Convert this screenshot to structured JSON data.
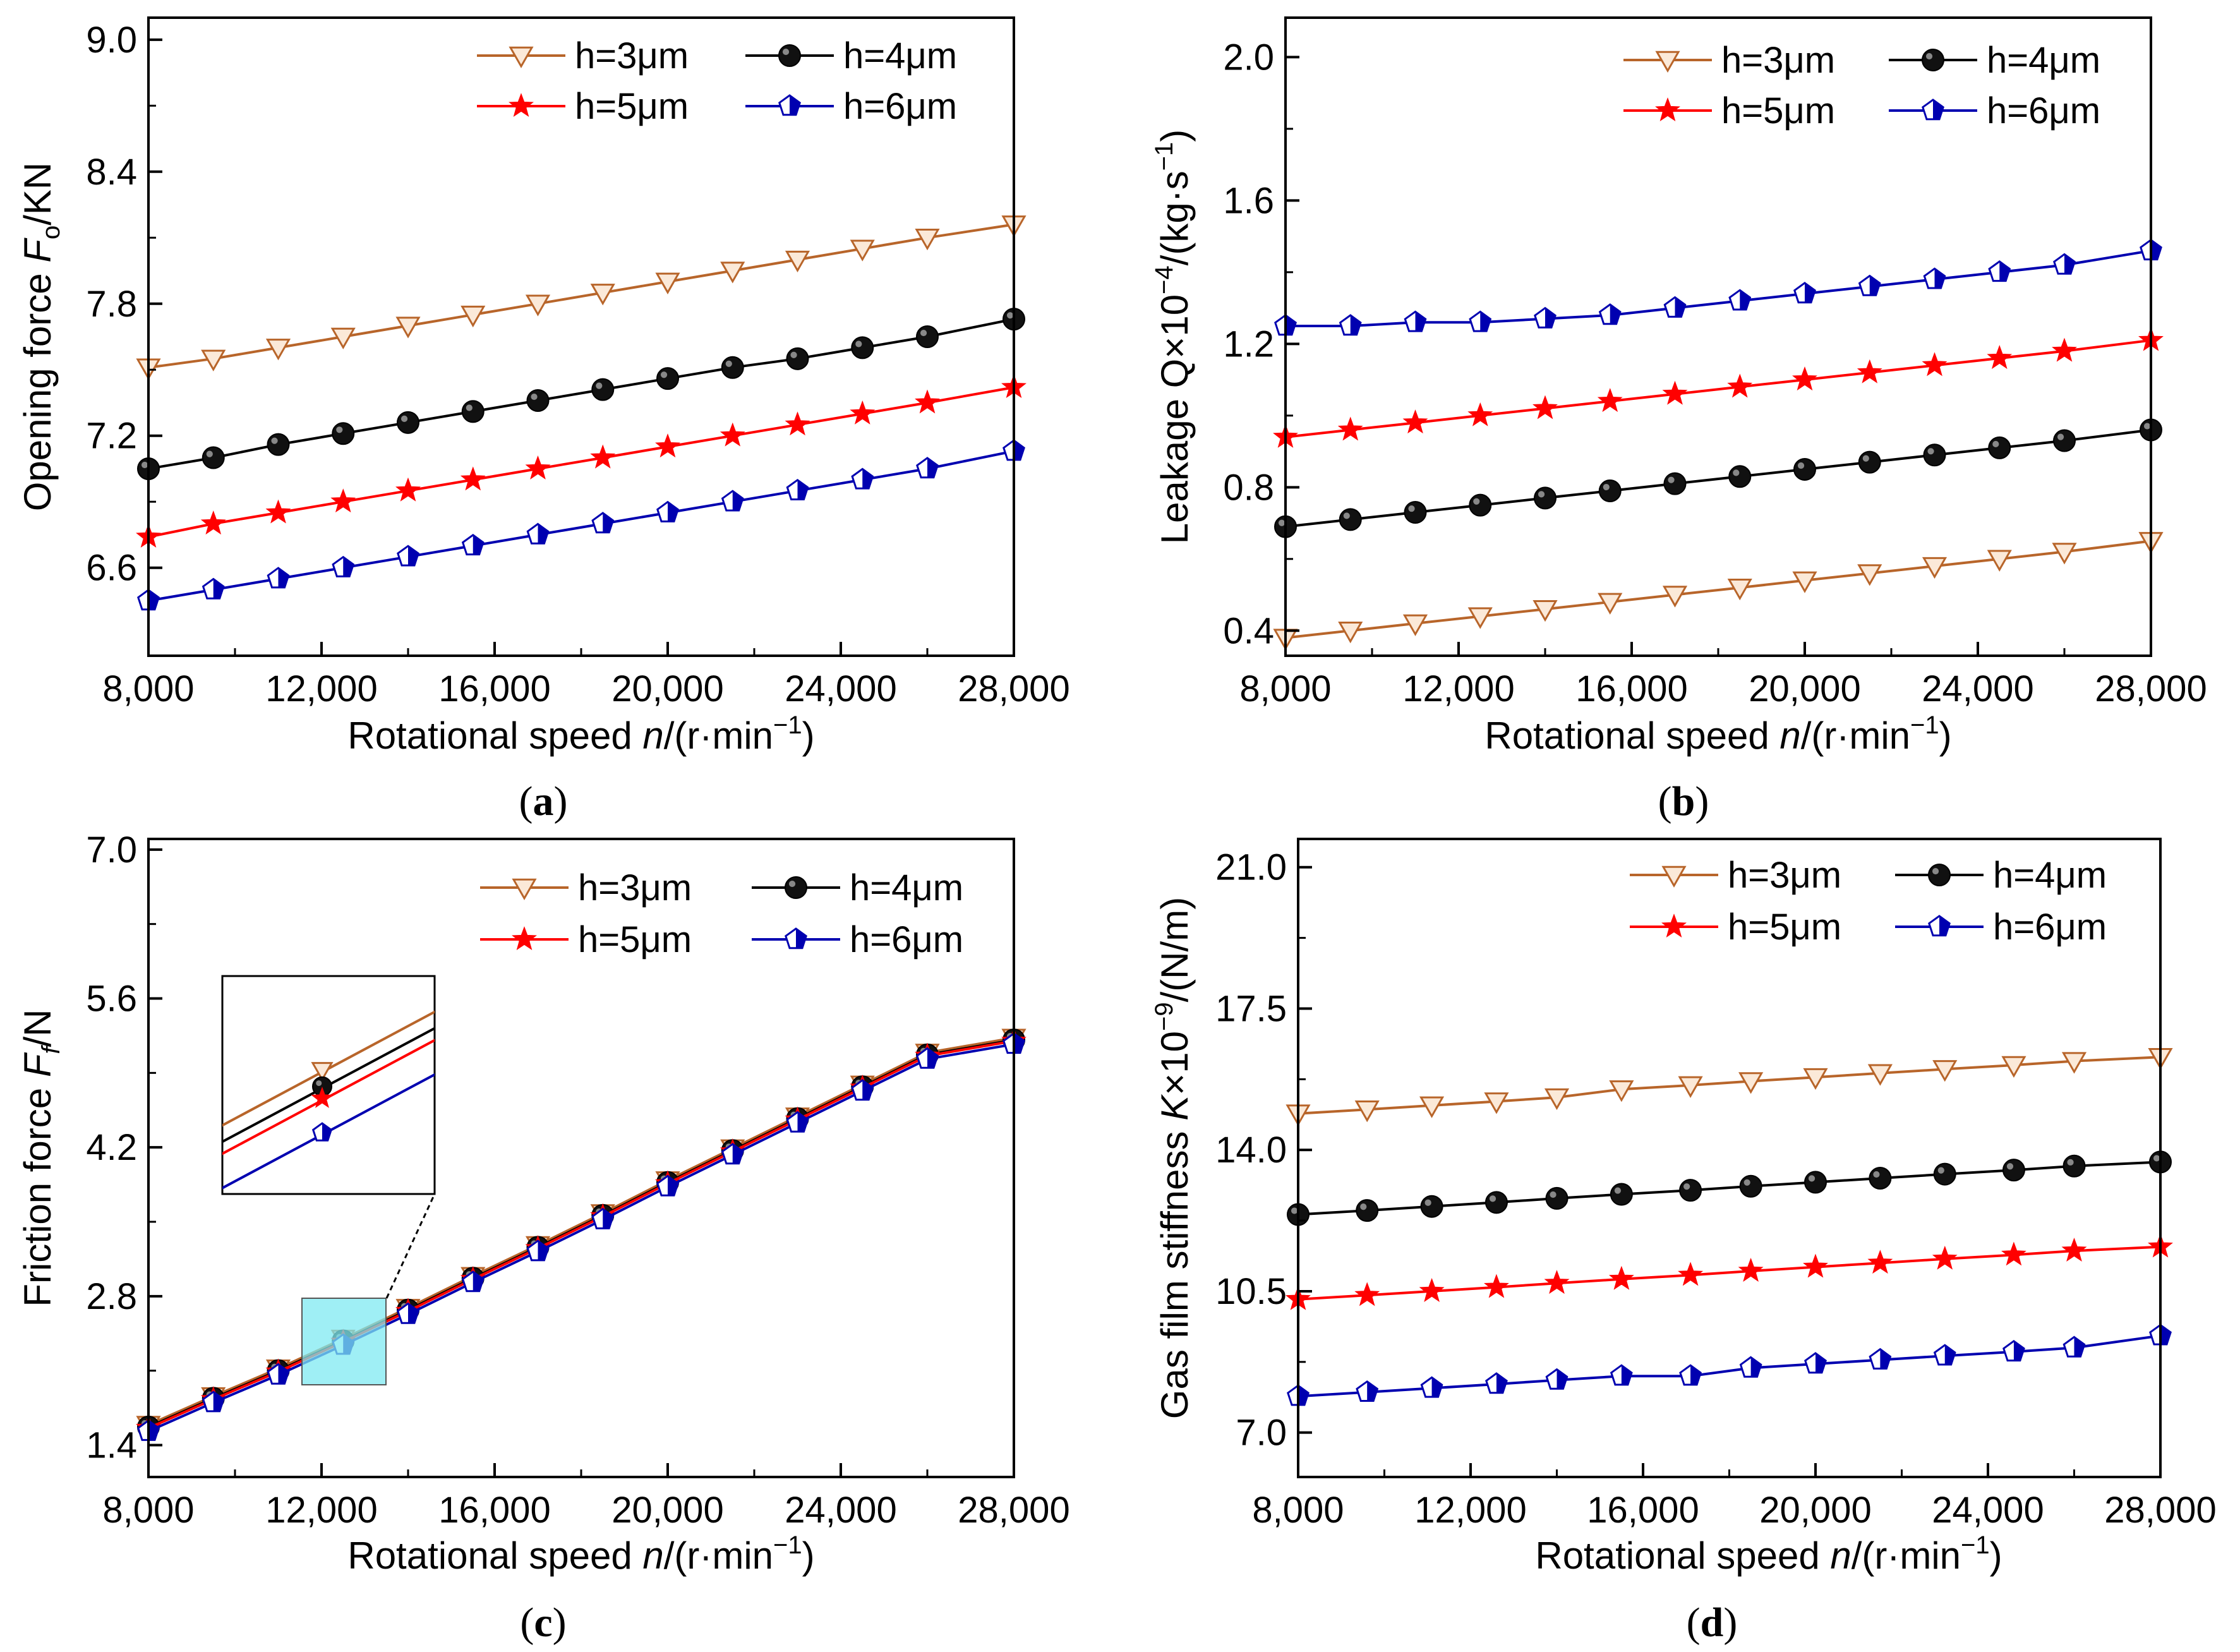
{
  "colors": {
    "h3": "#b8652a",
    "h4": "#000000",
    "h5": "#ff0000",
    "h6": "#0000b0",
    "inset_highlight": "#7fe9f2"
  },
  "legend": [
    "h=3μm",
    "h=4μm",
    "h=5μm",
    "h=6μm"
  ],
  "chart_data": [
    {
      "id": "a",
      "type": "line",
      "panel_label": "a",
      "ylabel": "Opening force F_o/KN",
      "ylabel_main": "Opening force ",
      "ylabel_var": "F",
      "ylabel_sub": "o",
      "ylabel_tail": "/KN",
      "xlabel_main": "Rotational speed ",
      "xlabel_var": "n",
      "xlabel_tail": "/(r·min",
      "xlabel_sup": "−1",
      "xlabel_close": ")",
      "xlim": [
        8000,
        28000
      ],
      "ylim": [
        6.2,
        9.1
      ],
      "xticks": [
        8000,
        12000,
        16000,
        20000,
        24000,
        28000
      ],
      "xtick_labels": [
        "8,000",
        "12,000",
        "16,000",
        "20,000",
        "24,000",
        "28,000"
      ],
      "yticks": [
        6.6,
        7.2,
        7.8,
        8.4,
        9.0
      ],
      "ytick_labels": [
        "6.6",
        "7.2",
        "7.8",
        "8.4",
        "9.0"
      ],
      "x": [
        8000,
        9500,
        11000,
        12500,
        14000,
        15500,
        17000,
        18500,
        20000,
        21500,
        23000,
        24500,
        26000,
        28000
      ],
      "series": [
        {
          "name": "h=3μm",
          "values": [
            7.51,
            7.55,
            7.6,
            7.65,
            7.7,
            7.75,
            7.8,
            7.85,
            7.9,
            7.95,
            8.0,
            8.05,
            8.1,
            8.16
          ]
        },
        {
          "name": "h=4μm",
          "values": [
            7.05,
            7.1,
            7.16,
            7.21,
            7.26,
            7.31,
            7.36,
            7.41,
            7.46,
            7.51,
            7.55,
            7.6,
            7.65,
            7.73
          ]
        },
        {
          "name": "h=5μm",
          "values": [
            6.74,
            6.8,
            6.85,
            6.9,
            6.95,
            7.0,
            7.05,
            7.1,
            7.15,
            7.2,
            7.25,
            7.3,
            7.35,
            7.42
          ]
        },
        {
          "name": "h=6μm",
          "values": [
            6.45,
            6.5,
            6.55,
            6.6,
            6.65,
            6.7,
            6.75,
            6.8,
            6.85,
            6.9,
            6.95,
            7.0,
            7.05,
            7.13
          ]
        }
      ]
    },
    {
      "id": "b",
      "type": "line",
      "panel_label": "b",
      "ylabel_main": "Leakage Q×10",
      "ylabel_sup": "−4",
      "ylabel_mid": "/(kg·s",
      "ylabel_sup2": "−1",
      "ylabel_close": ")",
      "xlabel_main": "Rotational speed ",
      "xlabel_var": "n",
      "xlabel_tail": "/(r·min",
      "xlabel_sup": "−1",
      "xlabel_close": ")",
      "xlim": [
        8000,
        28000
      ],
      "ylim": [
        0.33,
        2.11
      ],
      "xticks": [
        8000,
        12000,
        16000,
        20000,
        24000,
        28000
      ],
      "xtick_labels": [
        "8,000",
        "12,000",
        "16,000",
        "20,000",
        "24,000",
        "28,000"
      ],
      "yticks": [
        0.4,
        0.8,
        1.2,
        1.6,
        2.0
      ],
      "ytick_labels": [
        "0.4",
        "0.8",
        "1.2",
        "1.6",
        "2.0"
      ],
      "x": [
        8000,
        9500,
        11000,
        12500,
        14000,
        15500,
        17000,
        18500,
        20000,
        21500,
        23000,
        24500,
        26000,
        28000
      ],
      "series": [
        {
          "name": "h=3μm",
          "values": [
            0.38,
            0.4,
            0.42,
            0.44,
            0.46,
            0.48,
            0.5,
            0.52,
            0.54,
            0.56,
            0.58,
            0.6,
            0.62,
            0.65
          ]
        },
        {
          "name": "h=4μm",
          "values": [
            0.69,
            0.71,
            0.73,
            0.75,
            0.77,
            0.79,
            0.81,
            0.83,
            0.85,
            0.87,
            0.89,
            0.91,
            0.93,
            0.96
          ]
        },
        {
          "name": "h=5μm",
          "values": [
            0.94,
            0.96,
            0.98,
            1.0,
            1.02,
            1.04,
            1.06,
            1.08,
            1.1,
            1.12,
            1.14,
            1.16,
            1.18,
            1.21
          ]
        },
        {
          "name": "h=6μm",
          "values": [
            1.25,
            1.25,
            1.26,
            1.26,
            1.27,
            1.28,
            1.3,
            1.32,
            1.34,
            1.36,
            1.38,
            1.4,
            1.42,
            1.46
          ]
        }
      ]
    },
    {
      "id": "c",
      "type": "line",
      "panel_label": "c",
      "ylabel_main": "Friction force ",
      "ylabel_var": "F",
      "ylabel_sub": "f",
      "ylabel_tail": "/N",
      "xlabel_main": "Rotational speed ",
      "xlabel_var": "n",
      "xlabel_tail": "/(r·min",
      "xlabel_sup": "−1",
      "xlabel_close": ")",
      "xlim": [
        8000,
        28000
      ],
      "ylim": [
        1.1,
        7.1
      ],
      "xticks": [
        8000,
        12000,
        16000,
        20000,
        24000,
        28000
      ],
      "xtick_labels": [
        "8,000",
        "12,000",
        "16,000",
        "20,000",
        "24,000",
        "28,000"
      ],
      "yticks": [
        1.4,
        2.8,
        4.2,
        5.6,
        7.0
      ],
      "ytick_labels": [
        "1.4",
        "2.8",
        "4.2",
        "5.6",
        "7.0"
      ],
      "x": [
        8000,
        9500,
        11000,
        12500,
        14000,
        15500,
        17000,
        18500,
        20000,
        21500,
        23000,
        24500,
        26000,
        28000
      ],
      "series": [
        {
          "name": "h=3μm",
          "values": [
            1.59,
            1.86,
            2.12,
            2.4,
            2.69,
            2.99,
            3.28,
            3.58,
            3.89,
            4.19,
            4.49,
            4.79,
            5.09,
            5.23
          ]
        },
        {
          "name": "h=4μm",
          "values": [
            1.57,
            1.84,
            2.1,
            2.38,
            2.67,
            2.97,
            3.26,
            3.56,
            3.87,
            4.17,
            4.47,
            4.77,
            5.07,
            5.21
          ]
        },
        {
          "name": "h=5μm",
          "values": [
            1.56,
            1.83,
            2.09,
            2.37,
            2.66,
            2.96,
            3.25,
            3.55,
            3.86,
            4.16,
            4.46,
            4.76,
            5.06,
            5.2
          ]
        },
        {
          "name": "h=6μm",
          "values": [
            1.53,
            1.8,
            2.06,
            2.34,
            2.63,
            2.93,
            3.22,
            3.52,
            3.83,
            4.13,
            4.43,
            4.73,
            5.03,
            5.17
          ]
        }
      ],
      "inset": {
        "x_range": [
          11500,
          13500
        ],
        "y_range": [
          2.05,
          2.78
        ]
      }
    },
    {
      "id": "d",
      "type": "line",
      "panel_label": "d",
      "ylabel_main": "Gas film stiffness ",
      "ylabel_var": "K",
      "ylabel_mid": "×10",
      "ylabel_sup": "−9",
      "ylabel_tail": "/(N/m)",
      "xlabel_main": "Rotational speed ",
      "xlabel_var": "n",
      "xlabel_tail": "/(r·min",
      "xlabel_sup": "−1",
      "xlabel_close": ")",
      "xlim": [
        8000,
        28000
      ],
      "ylim": [
        5.9,
        21.7
      ],
      "xticks": [
        8000,
        12000,
        16000,
        20000,
        24000,
        28000
      ],
      "xtick_labels": [
        "8,000",
        "12,000",
        "16,000",
        "20,000",
        "24,000",
        "28,000"
      ],
      "yticks": [
        7.0,
        10.5,
        14.0,
        17.5,
        21.0
      ],
      "ytick_labels": [
        "7.0",
        "10.5",
        "14.0",
        "17.5",
        "21.0"
      ],
      "x": [
        8000,
        9600,
        11100,
        12600,
        14000,
        15500,
        17100,
        18500,
        20000,
        21500,
        23000,
        24600,
        26000,
        28000
      ],
      "series": [
        {
          "name": "h=3μm",
          "values": [
            14.9,
            15.0,
            15.1,
            15.2,
            15.3,
            15.5,
            15.6,
            15.7,
            15.8,
            15.9,
            16.0,
            16.1,
            16.2,
            16.3
          ]
        },
        {
          "name": "h=4μm",
          "values": [
            12.4,
            12.5,
            12.6,
            12.7,
            12.8,
            12.9,
            13.0,
            13.1,
            13.2,
            13.3,
            13.4,
            13.5,
            13.6,
            13.7
          ]
        },
        {
          "name": "h=5μm",
          "values": [
            10.3,
            10.4,
            10.5,
            10.6,
            10.7,
            10.8,
            10.9,
            11.0,
            11.1,
            11.2,
            11.3,
            11.4,
            11.5,
            11.6
          ]
        },
        {
          "name": "h=6μm",
          "values": [
            7.9,
            8.0,
            8.1,
            8.2,
            8.3,
            8.4,
            8.4,
            8.6,
            8.7,
            8.8,
            8.9,
            9.0,
            9.1,
            9.4
          ]
        }
      ]
    }
  ]
}
